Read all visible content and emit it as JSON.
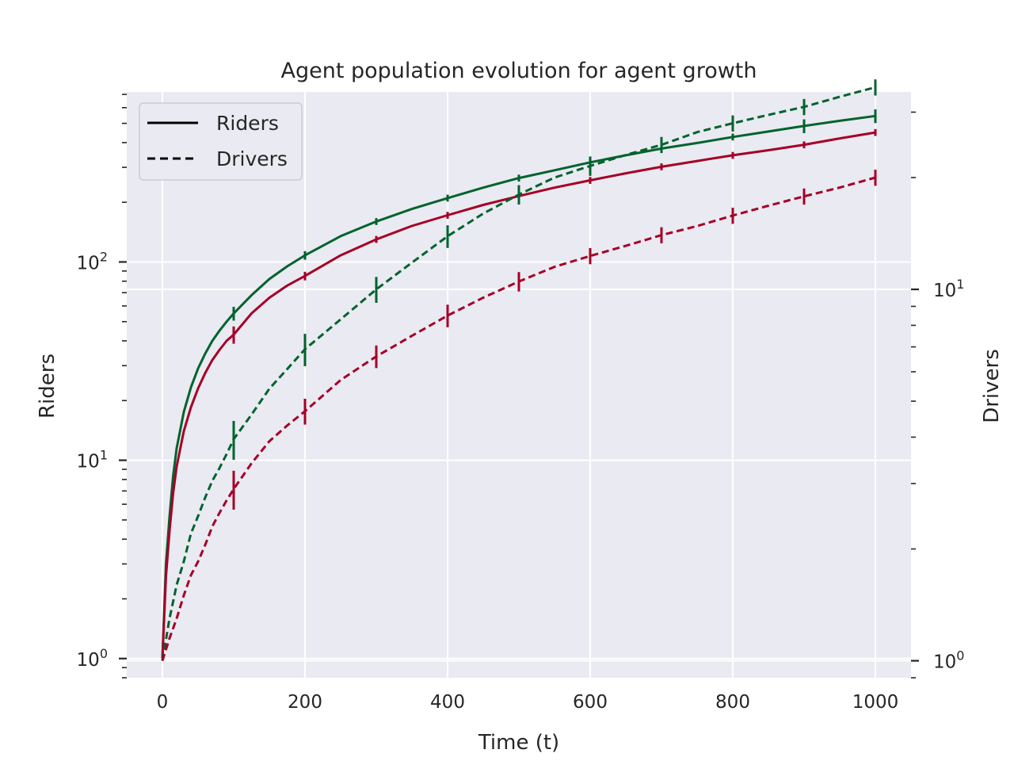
{
  "chart_data": {
    "type": "line",
    "title": "Agent population evolution for agent growth",
    "xlabel": "Time (t)",
    "ylabel_left": "Riders",
    "ylabel_right": "Drivers",
    "xlim": [
      -50,
      1050
    ],
    "xticks": [
      0,
      200,
      400,
      600,
      800,
      1000
    ],
    "xtick_labels": [
      "0",
      "200",
      "400",
      "600",
      "800",
      "1000"
    ],
    "left_axis": {
      "scale": "log",
      "ylim": [
        0.8,
        720
      ],
      "ticks": [
        1,
        10,
        100
      ],
      "tick_labels": [
        {
          "base": "10",
          "exp": "0"
        },
        {
          "base": "10",
          "exp": "1"
        },
        {
          "base": "10",
          "exp": "2"
        }
      ]
    },
    "right_axis": {
      "scale": "log",
      "ylim": [
        0.9,
        34
      ],
      "ticks": [
        1,
        10
      ],
      "tick_labels": [
        {
          "base": "10",
          "exp": "0"
        },
        {
          "base": "10",
          "exp": "1"
        }
      ]
    },
    "grid": true,
    "legend": {
      "placement": "top-left",
      "entries": [
        {
          "label": "Riders",
          "style": "solid"
        },
        {
          "label": "Drivers",
          "style": "dashed"
        }
      ]
    },
    "colors": {
      "green": "#00632d",
      "red": "#a50026",
      "background": "#eaeaf2",
      "grid": "#ffffff"
    },
    "series": [
      {
        "group": "green",
        "style": "solid",
        "axis": "left",
        "x": [
          0,
          5,
          10,
          15,
          20,
          30,
          40,
          50,
          60,
          70,
          80,
          90,
          100,
          125,
          150,
          175,
          200,
          250,
          300,
          350,
          400,
          450,
          500,
          550,
          600,
          650,
          700,
          750,
          800,
          850,
          900,
          950,
          1000
        ],
        "y": [
          1,
          3.0,
          5.2,
          8.3,
          11.5,
          17.5,
          23.3,
          29.0,
          34.5,
          40.0,
          45.0,
          50.0,
          55,
          68,
          82,
          95,
          108,
          135,
          160,
          185,
          210,
          237,
          265,
          290,
          318,
          345,
          373,
          398,
          427,
          455,
          485,
          515,
          545
        ],
        "errorbars": {
          "x": [
            100,
            200,
            300,
            400,
            500,
            600,
            700,
            800,
            900,
            1000
          ],
          "y": [
            55,
            108,
            160,
            210,
            265,
            318,
            373,
            427,
            485,
            545
          ],
          "err_frac": [
            0.08,
            0.05,
            0.04,
            0.04,
            0.04,
            0.04,
            0.04,
            0.04,
            0.08,
            0.08
          ]
        }
      },
      {
        "group": "red",
        "style": "solid",
        "axis": "left",
        "x": [
          0,
          5,
          10,
          15,
          20,
          30,
          40,
          50,
          60,
          70,
          80,
          90,
          100,
          125,
          150,
          175,
          200,
          250,
          300,
          350,
          400,
          450,
          500,
          550,
          600,
          650,
          700,
          750,
          800,
          850,
          900,
          950,
          1000
        ],
        "y": [
          1,
          2.6,
          4.4,
          6.8,
          9.3,
          14.0,
          18.5,
          23.0,
          27.5,
          32.0,
          36.0,
          40.0,
          43,
          55,
          66,
          76,
          85,
          108,
          130,
          152,
          172,
          194,
          215,
          237,
          258,
          280,
          302,
          323,
          345,
          366,
          390,
          420,
          450
        ],
        "errorbars": {
          "x": [
            100,
            200,
            300,
            400,
            500,
            600,
            700,
            800,
            900,
            1000
          ],
          "y": [
            43,
            85,
            130,
            172,
            215,
            258,
            302,
            345,
            390,
            450
          ],
          "err_frac": [
            0.1,
            0.05,
            0.04,
            0.04,
            0.04,
            0.04,
            0.04,
            0.04,
            0.04,
            0.04
          ]
        }
      },
      {
        "group": "green",
        "style": "dashed",
        "axis": "right",
        "x": [
          0,
          10,
          20,
          30,
          40,
          50,
          60,
          70,
          80,
          90,
          100,
          125,
          150,
          175,
          200,
          250,
          300,
          350,
          400,
          450,
          500,
          550,
          600,
          650,
          700,
          750,
          800,
          850,
          900,
          950,
          1000
        ],
        "y": [
          1,
          1.3,
          1.6,
          1.85,
          2.2,
          2.45,
          2.75,
          3.05,
          3.3,
          3.6,
          3.95,
          4.6,
          5.4,
          6.1,
          6.9,
          8.3,
          10.0,
          11.8,
          13.9,
          16.0,
          18.0,
          20.0,
          21.5,
          23.0,
          24.5,
          26.5,
          28.0,
          29.5,
          31.0,
          33.0,
          35.0
        ],
        "errorbars": {
          "x": [
            100,
            200,
            300,
            400,
            500,
            600,
            700,
            800,
            900,
            1000
          ],
          "y": [
            3.95,
            6.9,
            10.0,
            13.9,
            18.0,
            21.5,
            24.5,
            28.0,
            31.0,
            35.0
          ],
          "err_frac": [
            0.12,
            0.1,
            0.08,
            0.07,
            0.06,
            0.06,
            0.05,
            0.05,
            0.05,
            0.05
          ]
        }
      },
      {
        "group": "red",
        "style": "dashed",
        "axis": "right",
        "x": [
          0,
          10,
          20,
          30,
          40,
          50,
          60,
          70,
          80,
          90,
          100,
          125,
          150,
          175,
          200,
          250,
          300,
          350,
          400,
          450,
          500,
          550,
          600,
          650,
          700,
          750,
          800,
          850,
          900,
          950,
          1000
        ],
        "y": [
          1,
          1.15,
          1.3,
          1.5,
          1.7,
          1.85,
          2.05,
          2.3,
          2.5,
          2.7,
          2.9,
          3.4,
          3.9,
          4.3,
          4.7,
          5.7,
          6.6,
          7.5,
          8.5,
          9.5,
          10.5,
          11.5,
          12.3,
          13.1,
          14.0,
          14.8,
          15.8,
          16.8,
          17.8,
          18.8,
          20.0
        ],
        "errorbars": {
          "x": [
            100,
            200,
            300,
            400,
            500,
            600,
            700,
            800,
            900,
            1000
          ],
          "y": [
            2.9,
            4.7,
            6.6,
            8.5,
            10.5,
            12.3,
            14.0,
            15.8,
            17.8,
            20.0
          ],
          "err_frac": [
            0.12,
            0.08,
            0.07,
            0.07,
            0.06,
            0.05,
            0.05,
            0.05,
            0.05,
            0.05
          ]
        }
      }
    ]
  }
}
